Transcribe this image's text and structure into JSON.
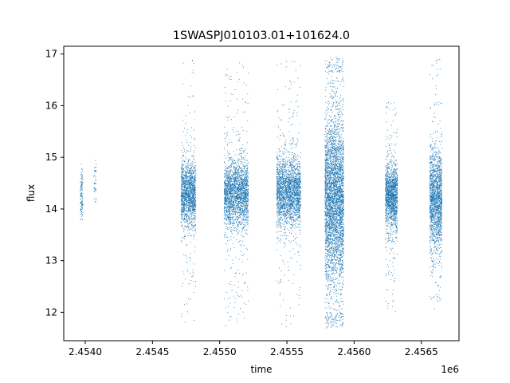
{
  "chart_data": {
    "type": "scatter",
    "title": "1SWASPJ010103.01+101624.0",
    "xlabel": "time",
    "ylabel": "flux",
    "x_offset_label": "1e6",
    "xlim": [
      2.45384,
      2.45678
    ],
    "ylim": [
      11.45,
      17.15
    ],
    "x_ticks": [
      {
        "value": 2.454,
        "label": "2.4540"
      },
      {
        "value": 2.4545,
        "label": "2.4545"
      },
      {
        "value": 2.455,
        "label": "2.4550"
      },
      {
        "value": 2.4555,
        "label": "2.4555"
      },
      {
        "value": 2.456,
        "label": "2.4560"
      },
      {
        "value": 2.4565,
        "label": "2.4565"
      }
    ],
    "y_ticks": [
      {
        "value": 12,
        "label": "12"
      },
      {
        "value": 13,
        "label": "13"
      },
      {
        "value": 14,
        "label": "14"
      },
      {
        "value": 15,
        "label": "15"
      },
      {
        "value": 16,
        "label": "16"
      },
      {
        "value": 17,
        "label": "17"
      }
    ],
    "grid": false,
    "marker_color": "#1f77b4",
    "clusters": [
      {
        "x_start": 2.45396,
        "x_end": 2.45398,
        "y_center": 14.3,
        "y_core": 0.25,
        "y_min": 13.8,
        "y_max": 14.9,
        "n": 120
      },
      {
        "x_start": 2.45406,
        "x_end": 2.45408,
        "y_center": 14.55,
        "y_core": 0.3,
        "y_min": 14.1,
        "y_max": 14.95,
        "n": 40
      },
      {
        "x_start": 2.45471,
        "x_end": 2.45482,
        "y_center": 14.3,
        "y_core": 0.3,
        "y_min": 11.75,
        "y_max": 16.9,
        "n": 1500
      },
      {
        "x_start": 2.45503,
        "x_end": 2.45521,
        "y_center": 14.3,
        "y_core": 0.32,
        "y_min": 11.7,
        "y_max": 16.9,
        "n": 2200
      },
      {
        "x_start": 2.45542,
        "x_end": 2.4556,
        "y_center": 14.35,
        "y_core": 0.33,
        "y_min": 11.7,
        "y_max": 16.9,
        "n": 2300
      },
      {
        "x_start": 2.45578,
        "x_end": 2.45592,
        "y_center": 14.2,
        "y_core": 0.8,
        "y_min": 11.7,
        "y_max": 16.95,
        "n": 3800
      },
      {
        "x_start": 2.45623,
        "x_end": 2.45632,
        "y_center": 14.25,
        "y_core": 0.3,
        "y_min": 12.0,
        "y_max": 16.1,
        "n": 1500
      },
      {
        "x_start": 2.45656,
        "x_end": 2.45665,
        "y_center": 14.2,
        "y_core": 0.5,
        "y_min": 12.05,
        "y_max": 16.9,
        "n": 1700
      }
    ]
  }
}
